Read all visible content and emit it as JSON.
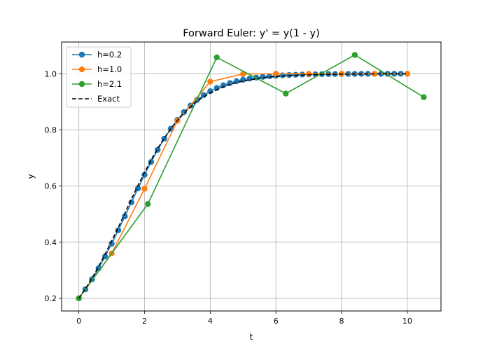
{
  "chart_data": {
    "type": "line",
    "title": "Forward Euler: y' = y(1 - y)",
    "xlabel": "t",
    "ylabel": "y",
    "xlim": [
      -0.525,
      11.025
    ],
    "ylim": [
      0.155,
      1.113
    ],
    "xticks": [
      0,
      2,
      4,
      6,
      8,
      10
    ],
    "yticks": [
      0.2,
      0.4,
      0.6,
      0.8,
      1.0
    ],
    "xtick_labels": [
      "0",
      "2",
      "4",
      "6",
      "8",
      "10"
    ],
    "ytick_labels": [
      "0.2",
      "0.4",
      "0.6",
      "0.8",
      "1.0"
    ],
    "grid": true,
    "legend_position": "top-left",
    "series": [
      {
        "name": "h=0.2",
        "color": "#1f77b4",
        "marker": "circle",
        "linestyle": "solid",
        "x": [
          0,
          0.2,
          0.4,
          0.6,
          0.8,
          1.0,
          1.2,
          1.4,
          1.6,
          1.8,
          2.0,
          2.2,
          2.4,
          2.6,
          2.8,
          3.0,
          3.2,
          3.4,
          3.6,
          3.8,
          4.0,
          4.2,
          4.4,
          4.6,
          4.8,
          5.0,
          5.2,
          5.4,
          5.6,
          5.8,
          6.0,
          6.2,
          6.4,
          6.6,
          6.8,
          7.0,
          7.2,
          7.4,
          7.6,
          7.8,
          8.0,
          8.2,
          8.4,
          8.6,
          8.8,
          9.0,
          9.2,
          9.4,
          9.6,
          9.8,
          10.0
        ],
        "y": [
          0.2,
          0.232,
          0.2676,
          0.3068,
          0.3493,
          0.3948,
          0.4426,
          0.4919,
          0.5419,
          0.5916,
          0.6399,
          0.686,
          0.7291,
          0.7686,
          0.8042,
          0.8357,
          0.8632,
          0.8868,
          0.9069,
          0.9238,
          0.9379,
          0.9495,
          0.9591,
          0.967,
          0.9734,
          0.9786,
          0.9828,
          0.9862,
          0.9889,
          0.9911,
          0.9929,
          0.9943,
          0.9954,
          0.9963,
          0.9971,
          0.9977,
          0.9981,
          0.9985,
          0.9988,
          0.999,
          0.9992,
          0.9994,
          0.9995,
          0.9996,
          0.9997,
          0.9997,
          0.9998,
          0.9998,
          0.9999,
          0.9999,
          0.9999
        ]
      },
      {
        "name": "h=1.0",
        "color": "#ff7f0e",
        "marker": "circle",
        "linestyle": "solid",
        "x": [
          0,
          1,
          2,
          3,
          4,
          5,
          6,
          7,
          8,
          9,
          10
        ],
        "y": [
          0.2,
          0.36,
          0.5904,
          0.8322,
          0.9719,
          0.9992,
          1.0,
          1.0,
          1.0,
          1.0,
          1.0
        ]
      },
      {
        "name": "h=2.1",
        "color": "#2ca02c",
        "marker": "circle",
        "linestyle": "solid",
        "x": [
          0,
          2.1,
          4.2,
          6.3,
          8.4,
          10.5
        ],
        "y": [
          0.2,
          0.536,
          1.0583,
          0.9294,
          1.0671,
          0.9166
        ]
      },
      {
        "name": "Exact",
        "color": "#000000",
        "marker": "none",
        "linestyle": "dashed",
        "x": [
          0,
          0.25,
          0.5,
          0.75,
          1.0,
          1.25,
          1.5,
          1.75,
          2.0,
          2.25,
          2.5,
          2.75,
          3.0,
          3.25,
          3.5,
          3.75,
          4.0,
          4.25,
          4.5,
          4.75,
          5.0,
          5.5,
          6.0,
          6.5,
          7.0,
          7.5,
          8.0,
          8.5,
          9.0,
          9.5,
          10.0
        ],
        "y": [
          0.2,
          0.243,
          0.2919,
          0.3463,
          0.4046,
          0.4649,
          0.5284,
          0.5902,
          0.6487,
          0.7034,
          0.7528,
          0.7964,
          0.834,
          0.8659,
          0.8926,
          0.9146,
          0.9317,
          0.9462,
          0.9577,
          0.9669,
          0.9738,
          0.9842,
          0.9902,
          0.994,
          0.9964,
          0.9978,
          0.9986,
          0.9992,
          0.9995,
          0.9997,
          0.9998
        ]
      }
    ]
  }
}
